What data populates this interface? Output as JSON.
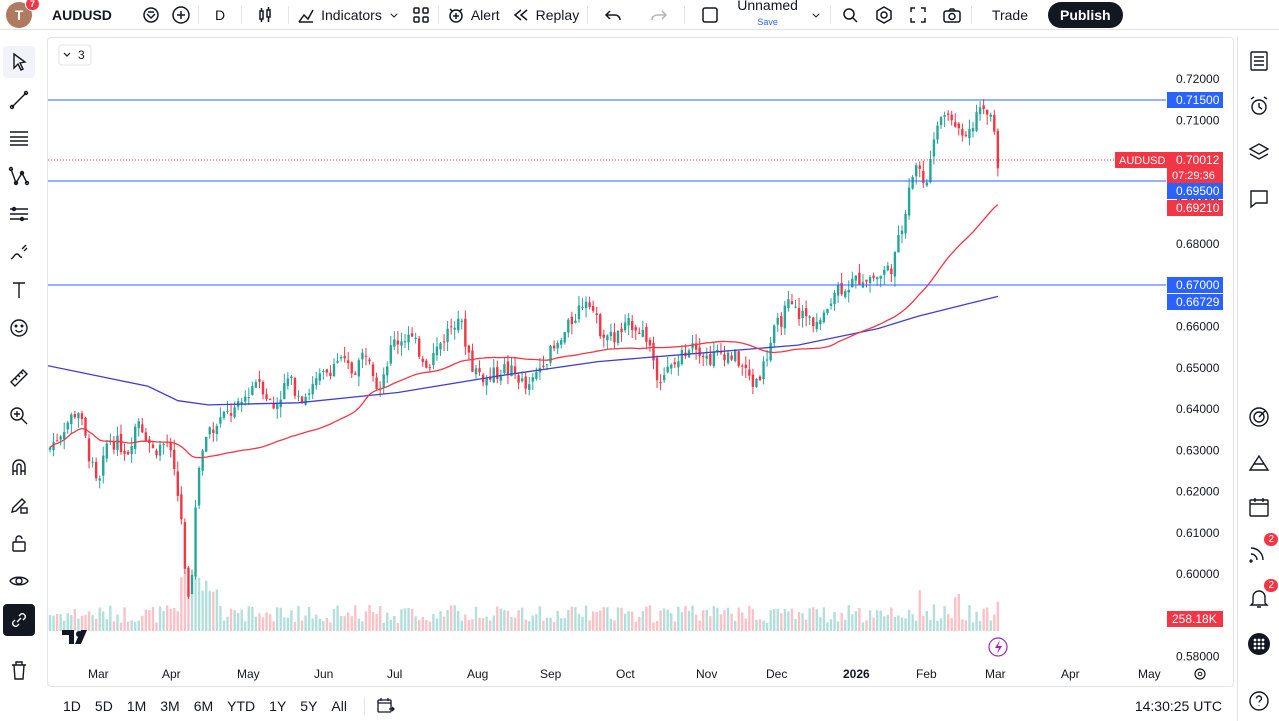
{
  "toolbar": {
    "avatar_letter": "T",
    "avatar_badge": "7",
    "symbol": "AUDUSD",
    "interval": "D",
    "indicators_label": "Indicators",
    "alert_label": "Alert",
    "replay_label": "Replay",
    "layout_name": "Unnamed",
    "save_label": "Save",
    "trade_label": "Trade",
    "publish_label": "Publish"
  },
  "legend": {
    "collapsed_count": "3"
  },
  "price_axis": {
    "ticks": [
      "0.72000",
      "0.71000",
      "0.70000",
      "0.69000",
      "0.68000",
      "0.67000",
      "0.66000",
      "0.65000",
      "0.64000",
      "0.63000",
      "0.62000",
      "0.61000",
      "0.60000",
      "0.59000",
      "0.58000"
    ],
    "labels": {
      "hline_top": "0.71500",
      "symbol_tag": "AUDUSD",
      "last_price": "0.70012",
      "countdown": "07:29:36",
      "hline_mid": "0.69500",
      "ma_fast": "0.69210",
      "hline_low": "0.67000",
      "ma_slow": "0.66729",
      "volume": "258.18K"
    }
  },
  "time_axis": {
    "labels": [
      "Mar",
      "Apr",
      "May",
      "Jun",
      "Jul",
      "Aug",
      "Sep",
      "Oct",
      "Nov",
      "Dec",
      "2026",
      "Feb",
      "Mar",
      "Apr",
      "May"
    ]
  },
  "bottom": {
    "ranges": [
      "1D",
      "5D",
      "1M",
      "3M",
      "6M",
      "YTD",
      "1Y",
      "5Y",
      "All"
    ],
    "clock": "14:30:25 UTC"
  },
  "right_badges": {
    "streams": "2",
    "notifications": "2"
  },
  "colors": {
    "up": "#26a69a",
    "down": "#f23645",
    "hline": "#2962ff",
    "ma_fast": "#f23645",
    "ma_slow": "#3f3fcf",
    "accent": "#2962ff"
  },
  "chart_data": {
    "type": "candlestick",
    "symbol": "AUDUSD",
    "interval": "D",
    "y_range": [
      0.575,
      0.7225
    ],
    "horizontal_levels": [
      0.715,
      0.695,
      0.67
    ],
    "last_price": 0.70012,
    "ma_fast_last": 0.6921,
    "ma_slow_last": 0.66729,
    "approx_closes": [
      {
        "month": "Mar",
        "value": 0.628
      },
      {
        "month": "Apr",
        "value": 0.6
      },
      {
        "month": "Apr-end",
        "value": 0.638
      },
      {
        "month": "May",
        "value": 0.642
      },
      {
        "month": "Jun",
        "value": 0.648
      },
      {
        "month": "Jul",
        "value": 0.655
      },
      {
        "month": "Aug",
        "value": 0.645
      },
      {
        "month": "Sep",
        "value": 0.668
      },
      {
        "month": "Oct",
        "value": 0.658
      },
      {
        "month": "Nov",
        "value": 0.65
      },
      {
        "month": "Dec",
        "value": 0.665
      },
      {
        "month": "Jan",
        "value": 0.672
      },
      {
        "month": "Feb",
        "value": 0.712
      },
      {
        "month": "Mar",
        "value": 0.7
      }
    ]
  }
}
